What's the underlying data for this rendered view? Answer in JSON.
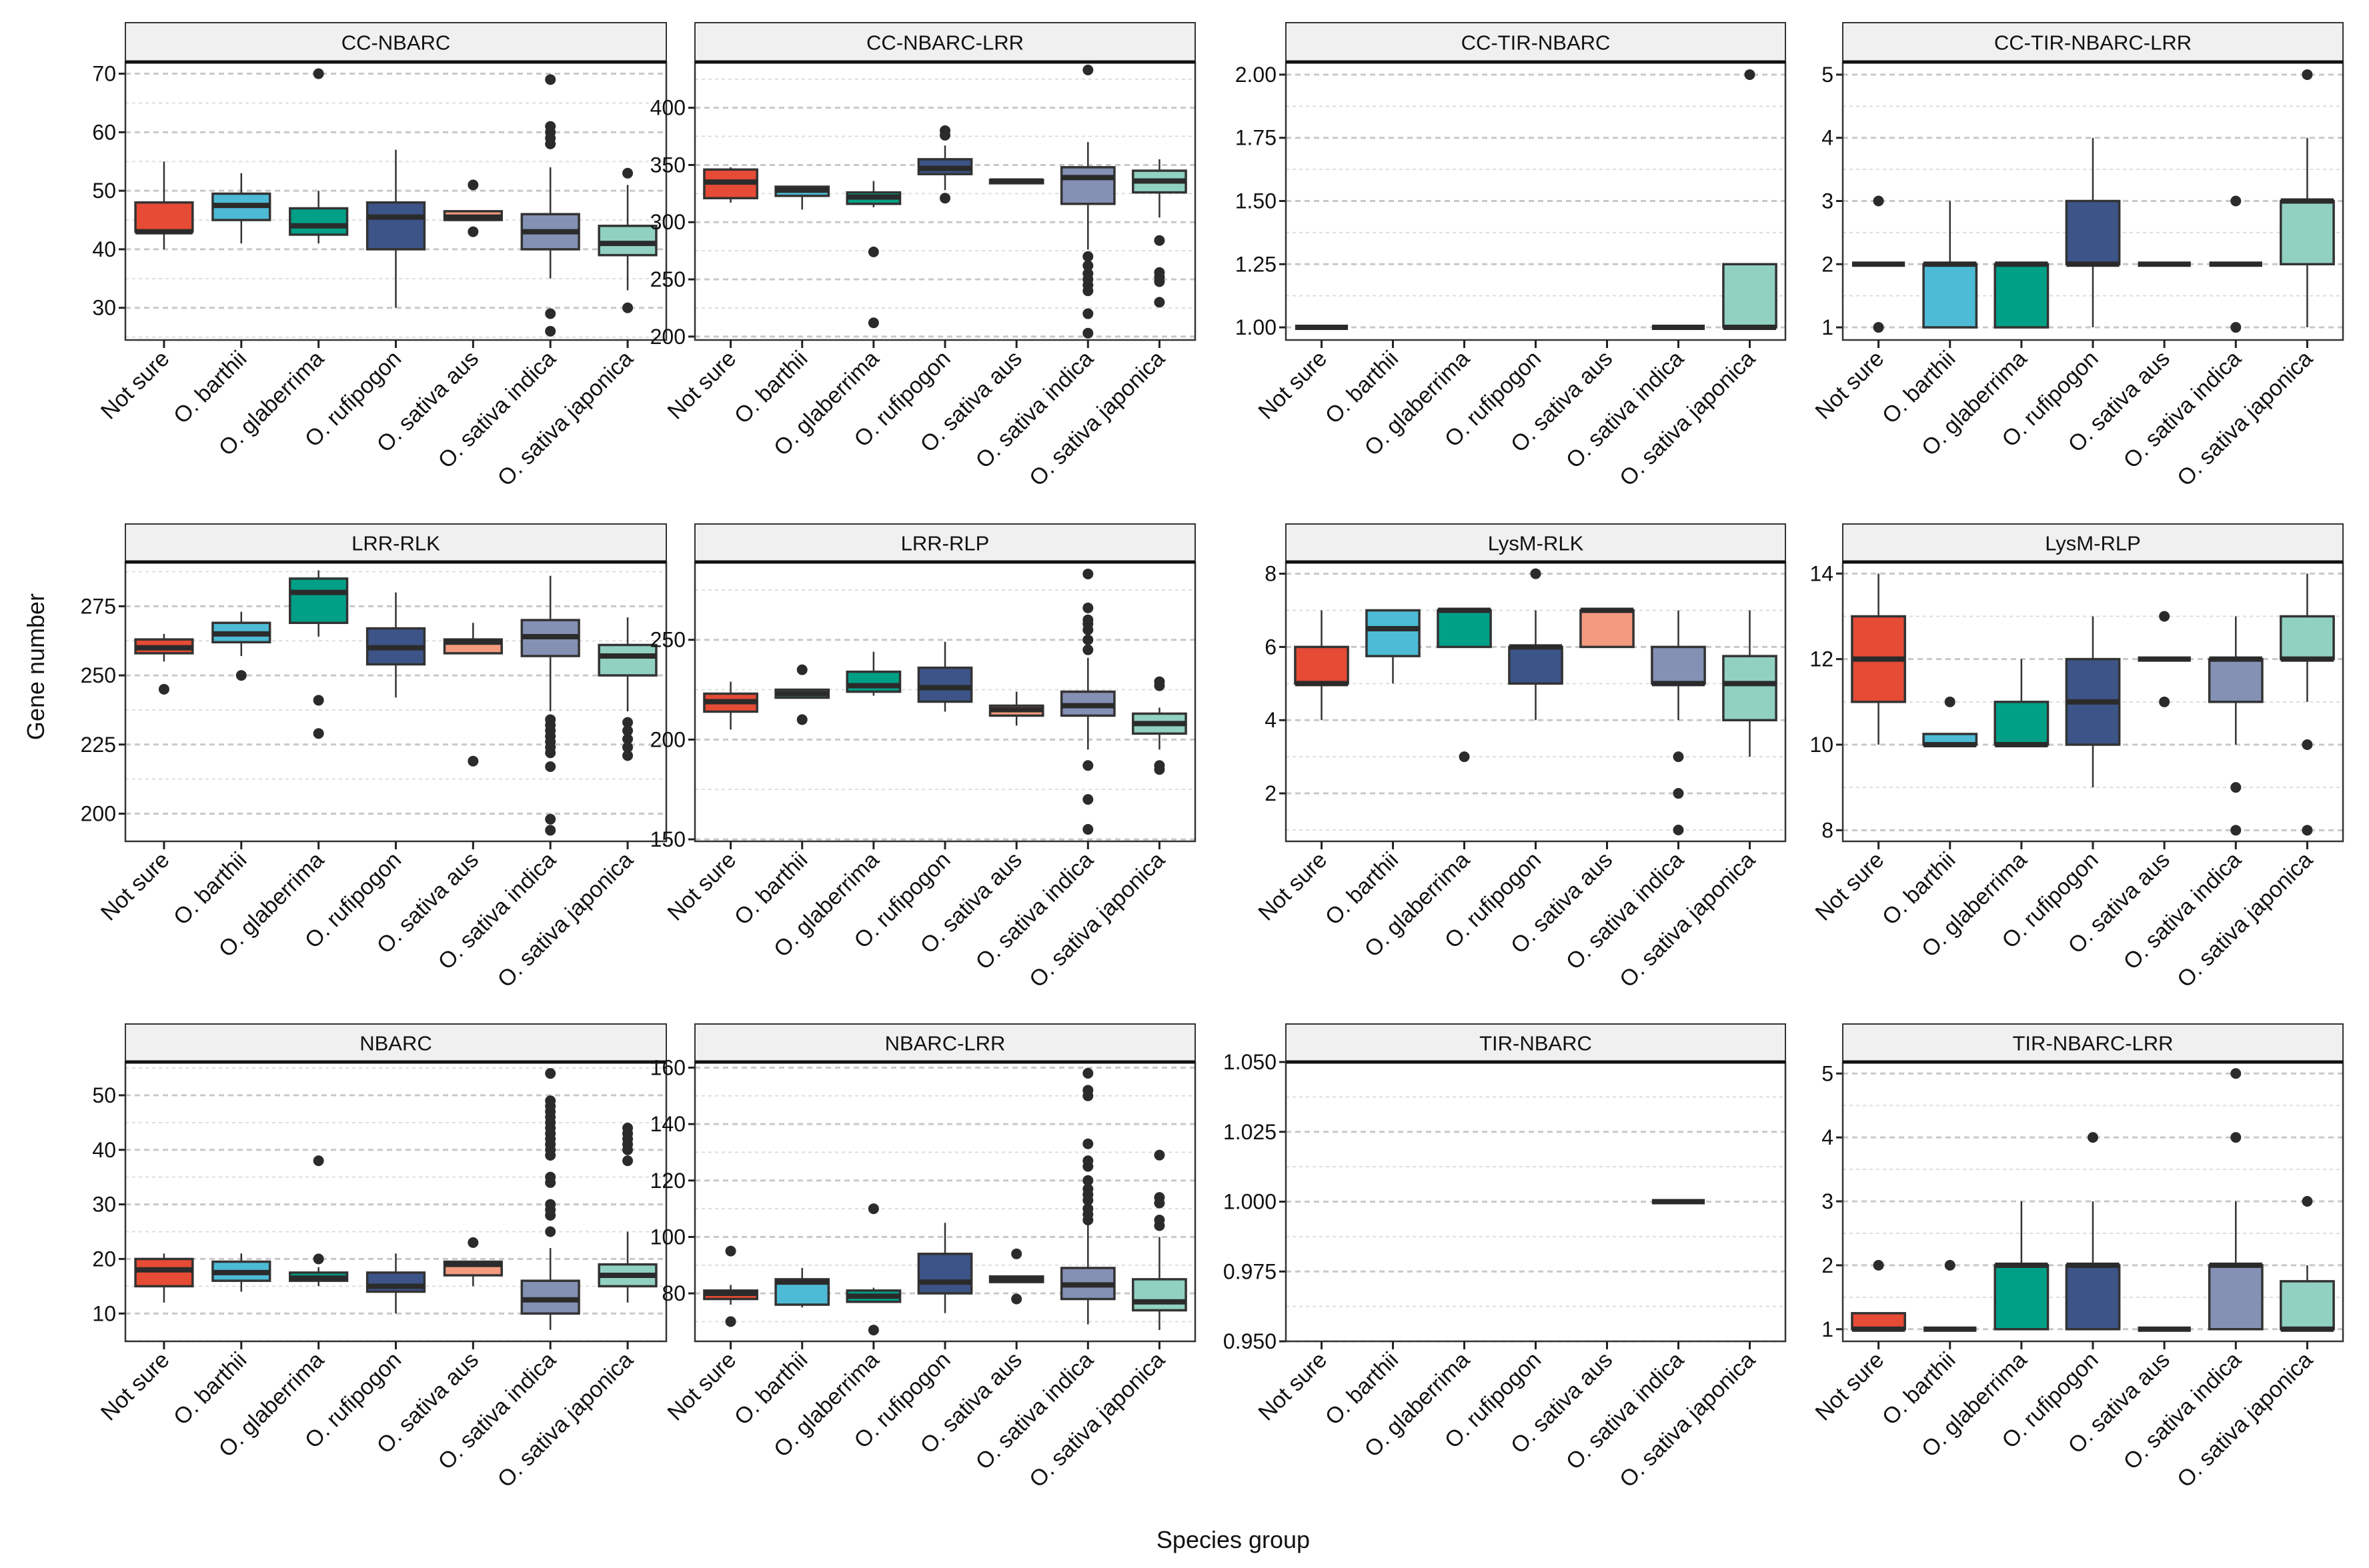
{
  "chart_data": {
    "type": "boxplot",
    "xlabel": "Species group",
    "ylabel": "Gene number",
    "grid": true,
    "categories": [
      "Not sure",
      "O. barthii",
      "O. glaberrima",
      "O. rufipogon",
      "O. sativa aus",
      "O. sativa indica",
      "O. sativa japonica"
    ],
    "colors": [
      "#E64B35",
      "#4DBBD5",
      "#00A087",
      "#3C5488",
      "#F39B7F",
      "#8491B4",
      "#91D1C2"
    ],
    "box_format": [
      "whisker_low",
      "q1",
      "median",
      "q3",
      "whisker_high",
      "outliers"
    ],
    "panels": [
      {
        "title": "CC-NBARC",
        "ylim": [
          24.5,
          72
        ],
        "yticks": [
          30,
          40,
          50,
          60,
          70
        ],
        "ytick_labels": [
          "30",
          "40",
          "50",
          "60",
          "70"
        ],
        "boxes": [
          [
            40,
            43,
            43,
            48,
            55,
            []
          ],
          [
            41,
            45,
            47.5,
            49.5,
            53,
            []
          ],
          [
            41,
            42.5,
            44,
            47,
            50,
            [
              70
            ]
          ],
          [
            30,
            40,
            45.5,
            48,
            57,
            []
          ],
          [
            45,
            45,
            45.5,
            46.5,
            46.5,
            [
              51,
              43
            ]
          ],
          [
            35,
            40,
            43,
            46,
            54,
            [
              69,
              61,
              60,
              59,
              58,
              29,
              26
            ]
          ],
          [
            33,
            39,
            41,
            44,
            51,
            [
              53,
              30
            ]
          ]
        ]
      },
      {
        "title": "CC-NBARC-LRR",
        "ylim": [
          197,
          440
        ],
        "yticks": [
          200,
          250,
          300,
          350,
          400
        ],
        "ytick_labels": [
          "200",
          "250",
          "300",
          "350",
          "400"
        ],
        "boxes": [
          [
            317,
            321,
            335,
            346,
            348,
            []
          ],
          [
            311,
            323,
            328,
            331,
            331,
            []
          ],
          [
            313,
            316,
            322,
            326,
            336,
            [
              274,
              212
            ]
          ],
          [
            328,
            342,
            347,
            355,
            367,
            [
              380,
              376,
              321
            ]
          ],
          [
            334,
            334,
            336,
            337,
            337,
            []
          ],
          [
            276,
            316,
            339,
            348,
            370,
            [
              433,
              270,
              262,
              255,
              250,
              245,
              240,
              220,
              203
            ]
          ],
          [
            304,
            326,
            336,
            345,
            355,
            [
              284,
              256,
              252,
              248,
              230
            ]
          ]
        ]
      },
      {
        "title": "CC-TIR-NBARC",
        "ylim": [
          0.95,
          2.05
        ],
        "yticks": [
          1,
          1.25,
          1.5,
          1.75,
          2
        ],
        "ytick_labels": [
          "1.00",
          "1.25",
          "1.50",
          "1.75",
          "2.00"
        ],
        "boxes": [
          [
            1,
            1,
            1,
            1,
            1,
            []
          ],
          null,
          null,
          null,
          null,
          [
            1,
            1,
            1,
            1,
            1,
            []
          ],
          [
            1,
            1,
            1,
            1.25,
            1.25,
            [
              2
            ]
          ]
        ]
      },
      {
        "title": "CC-TIR-NBARC-LRR",
        "ylim": [
          0.8,
          5.2
        ],
        "yticks": [
          1,
          2,
          3,
          4,
          5
        ],
        "ytick_labels": [
          "1",
          "2",
          "3",
          "4",
          "5"
        ],
        "boxes": [
          [
            2,
            2,
            2,
            2,
            2,
            [
              3,
              1
            ]
          ],
          [
            1,
            1,
            2,
            2,
            3,
            []
          ],
          [
            1,
            1,
            2,
            2,
            2,
            []
          ],
          [
            1,
            2,
            2,
            3,
            4,
            []
          ],
          [
            2,
            2,
            2,
            2,
            2,
            []
          ],
          [
            2,
            2,
            2,
            2,
            2,
            [
              3,
              1
            ]
          ],
          [
            1,
            2,
            3,
            3,
            4,
            [
              5
            ]
          ]
        ]
      },
      {
        "title": "LRR-RLK",
        "ylim": [
          190,
          291
        ],
        "yticks": [
          200,
          225,
          250,
          275
        ],
        "ytick_labels": [
          "200",
          "225",
          "250",
          "275"
        ],
        "boxes": [
          [
            255,
            258,
            260,
            263,
            265,
            [
              245
            ]
          ],
          [
            257,
            262,
            265,
            269,
            273,
            [
              250
            ]
          ],
          [
            264,
            269,
            280,
            285,
            288,
            [
              241,
              229
            ]
          ],
          [
            242,
            254,
            260,
            267,
            280,
            []
          ],
          [
            258,
            258,
            262,
            263,
            269,
            [
              219
            ]
          ],
          [
            237,
            257,
            264,
            270,
            286,
            [
              234,
              232,
              230,
              228,
              226,
              224,
              222,
              217,
              198,
              194
            ]
          ],
          [
            237,
            250,
            257,
            261,
            271,
            [
              233,
              230,
              227,
              224,
              221
            ]
          ]
        ]
      },
      {
        "title": "LRR-RLP",
        "ylim": [
          149,
          289
        ],
        "yticks": [
          150,
          200,
          250
        ],
        "ytick_labels": [
          "150",
          "200",
          "250"
        ],
        "boxes": [
          [
            205,
            214,
            219,
            223,
            229,
            []
          ],
          [
            221,
            221,
            223,
            225,
            225,
            [
              235,
              210
            ]
          ],
          [
            222,
            224,
            227,
            234,
            244,
            []
          ],
          [
            214,
            219,
            226,
            236,
            249,
            []
          ],
          [
            207,
            212,
            215,
            217,
            224,
            []
          ],
          [
            195,
            212,
            217,
            224,
            241,
            [
              283,
              266,
              260,
              258,
              255,
              250,
              245,
              187,
              170,
              155
            ]
          ],
          [
            195,
            203,
            208,
            213,
            216,
            [
              229,
              227,
              187,
              185
            ]
          ]
        ]
      },
      {
        "title": "LysM-RLK",
        "ylim": [
          0.69,
          8.32
        ],
        "yticks": [
          2,
          4,
          6,
          8
        ],
        "ytick_labels": [
          "2",
          "4",
          "6",
          "8"
        ],
        "boxes": [
          [
            4,
            5,
            5,
            6,
            7,
            []
          ],
          [
            5,
            5.75,
            6.5,
            7,
            7,
            []
          ],
          [
            6,
            6,
            7,
            7,
            7,
            [
              3
            ]
          ],
          [
            4,
            5,
            6,
            6,
            7,
            [
              8
            ]
          ],
          [
            6,
            6,
            7,
            7,
            7,
            []
          ],
          [
            4,
            5,
            5,
            6,
            7,
            [
              3,
              2,
              1
            ]
          ],
          [
            3,
            4,
            5,
            5.75,
            7,
            []
          ]
        ]
      },
      {
        "title": "LysM-RLP",
        "ylim": [
          7.74,
          14.27
        ],
        "yticks": [
          8,
          10,
          12,
          14
        ],
        "ytick_labels": [
          "8",
          "10",
          "12",
          "14"
        ],
        "boxes": [
          [
            10,
            11,
            12,
            13,
            14,
            []
          ],
          [
            10,
            10,
            10,
            10.25,
            10.25,
            [
              11
            ]
          ],
          [
            10,
            10,
            10,
            11,
            12,
            []
          ],
          [
            9,
            10,
            11,
            12,
            13,
            []
          ],
          [
            12,
            12,
            12,
            12,
            12,
            [
              13,
              11
            ]
          ],
          [
            10,
            11,
            12,
            12,
            13,
            [
              9,
              8
            ]
          ],
          [
            11,
            12,
            12,
            13,
            14,
            [
              10,
              8
            ]
          ]
        ]
      },
      {
        "title": "NBARC",
        "ylim": [
          4.9,
          56.1
        ],
        "yticks": [
          10,
          20,
          30,
          40,
          50
        ],
        "ytick_labels": [
          "10",
          "20",
          "30",
          "40",
          "50"
        ],
        "boxes": [
          [
            12,
            15,
            18,
            20,
            21,
            []
          ],
          [
            14,
            16,
            17.5,
            19.5,
            21,
            []
          ],
          [
            15,
            16,
            16.5,
            17.5,
            18.5,
            [
              38,
              20
            ]
          ],
          [
            10,
            14,
            15,
            17.5,
            21,
            []
          ],
          [
            15,
            17,
            19,
            19.5,
            19.5,
            [
              23
            ]
          ],
          [
            7,
            10,
            12.5,
            16,
            22,
            [
              54,
              49,
              48,
              47,
              46,
              45,
              44,
              43,
              42,
              41,
              40,
              39,
              35,
              34,
              30,
              29,
              28,
              25
            ]
          ],
          [
            12,
            15,
            17,
            19,
            25,
            [
              44,
              43,
              42,
              41,
              40,
              38
            ]
          ]
        ]
      },
      {
        "title": "NBARC-LRR",
        "ylim": [
          63,
          162
        ],
        "yticks": [
          80,
          100,
          120,
          140,
          160
        ],
        "ytick_labels": [
          "80",
          "100",
          "120",
          "140",
          "160"
        ],
        "boxes": [
          [
            76,
            78,
            80,
            81,
            83,
            [
              95,
              70
            ]
          ],
          [
            75,
            76,
            84,
            85,
            89,
            []
          ],
          [
            77,
            77,
            79,
            81,
            82,
            [
              110,
              67
            ]
          ],
          [
            73,
            80,
            84,
            94,
            105,
            []
          ],
          [
            84,
            84,
            85,
            86,
            86,
            [
              94,
              78
            ]
          ],
          [
            69,
            78,
            83,
            89,
            105,
            [
              158,
              152,
              150,
              133,
              127,
              125,
              120,
              117,
              115,
              113,
              110,
              108,
              106
            ]
          ],
          [
            67,
            74,
            77,
            85,
            100,
            [
              129,
              114,
              112,
              106,
              104
            ]
          ]
        ]
      },
      {
        "title": "TIR-NBARC",
        "ylim": [
          0.95,
          1.05
        ],
        "yticks": [
          0.95,
          0.975,
          1,
          1.025,
          1.05
        ],
        "ytick_labels": [
          "0.950",
          "0.975",
          "1.000",
          "1.025",
          "1.050"
        ],
        "boxes": [
          null,
          null,
          null,
          null,
          null,
          [
            1,
            1,
            1,
            1,
            1,
            []
          ],
          null
        ]
      },
      {
        "title": "TIR-NBARC-LRR",
        "ylim": [
          0.81,
          5.18
        ],
        "yticks": [
          1,
          2,
          3,
          4,
          5
        ],
        "ytick_labels": [
          "1",
          "2",
          "3",
          "4",
          "5"
        ],
        "boxes": [
          [
            1,
            1,
            1,
            1.25,
            1.25,
            [
              2
            ]
          ],
          [
            1,
            1,
            1,
            1,
            1,
            [
              2
            ]
          ],
          [
            1,
            1,
            2,
            2,
            3,
            []
          ],
          [
            1,
            1,
            2,
            2,
            3,
            [
              4
            ]
          ],
          [
            1,
            1,
            1,
            1,
            1,
            []
          ],
          [
            1,
            1,
            2,
            2,
            3,
            [
              5,
              4
            ]
          ],
          [
            1,
            1,
            1,
            1.75,
            2,
            [
              3
            ]
          ]
        ]
      }
    ]
  }
}
